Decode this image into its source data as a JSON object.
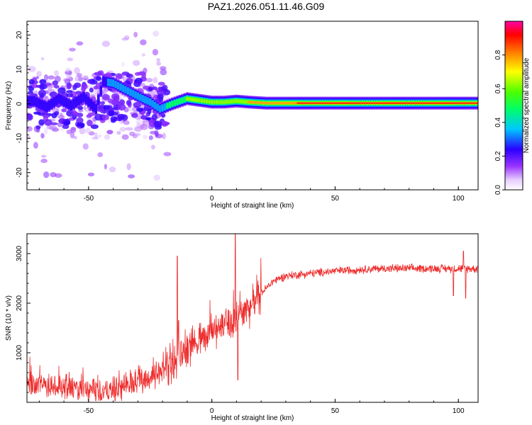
{
  "figure_title": "PAZ1.2026.051.11.46.G09",
  "colors": {
    "snr_line": "#ee2a2a",
    "axis": "#000000",
    "background": "#ffffff"
  },
  "chart_data": [
    {
      "type": "heatmap",
      "name": "spectrogram",
      "xlabel": "Height of straight line (km)",
      "ylabel": "Frequency (Hz)",
      "xlim": [
        -75,
        108
      ],
      "ylim": [
        -25,
        24
      ],
      "x_ticks": [
        -50,
        0,
        50,
        100
      ],
      "y_ticks": [
        -20,
        -10,
        0,
        10,
        20
      ],
      "colorbar": {
        "label": "Normalized spectral amplitude",
        "range": [
          0,
          1
        ],
        "ticks": [
          "0.0",
          "0.2",
          "0.4",
          "0.6",
          "0.8"
        ],
        "colormap": "rainbow (white-violet-blue-cyan-green-yellow-red-magenta)"
      },
      "ridge": [
        {
          "x": -72,
          "freq": 0.8,
          "amp": 0.22
        },
        {
          "x": -67,
          "freq": -1.0,
          "amp": 0.25
        },
        {
          "x": -62,
          "freq": 1.5,
          "amp": 0.24
        },
        {
          "x": -57,
          "freq": -0.5,
          "amp": 0.23
        },
        {
          "x": -52,
          "freq": 2.0,
          "amp": 0.22
        },
        {
          "x": -47,
          "freq": -1.5,
          "amp": 0.22
        },
        {
          "x": -44,
          "freq": 6.5,
          "amp": 0.3
        },
        {
          "x": -40,
          "freq": 6.0,
          "amp": 0.35
        },
        {
          "x": -36,
          "freq": 4.5,
          "amp": 0.4
        },
        {
          "x": -32,
          "freq": 3.0,
          "amp": 0.38
        },
        {
          "x": -28,
          "freq": 1.5,
          "amp": 0.36
        },
        {
          "x": -25,
          "freq": 0.5,
          "amp": 0.34
        },
        {
          "x": -21,
          "freq": -1.5,
          "amp": 0.4
        },
        {
          "x": -16,
          "freq": 0.0,
          "amp": 0.5
        },
        {
          "x": -10,
          "freq": 1.5,
          "amp": 0.6
        },
        {
          "x": -5,
          "freq": 1.0,
          "amp": 0.62
        },
        {
          "x": 0,
          "freq": 0.5,
          "amp": 0.68
        },
        {
          "x": 5,
          "freq": 0.5,
          "amp": 0.7
        },
        {
          "x": 10,
          "freq": 0.8,
          "amp": 0.72
        },
        {
          "x": 15,
          "freq": 0.5,
          "amp": 0.76
        },
        {
          "x": 22,
          "freq": 0.2,
          "amp": 0.85
        },
        {
          "x": 40,
          "freq": 0.2,
          "amp": 0.92
        },
        {
          "x": 60,
          "freq": 0.2,
          "amp": 0.95
        },
        {
          "x": 80,
          "freq": 0.2,
          "amp": 0.96
        },
        {
          "x": 100,
          "freq": 0.2,
          "amp": 0.96
        },
        {
          "x": 108,
          "freq": 0.2,
          "amp": 0.96
        }
      ]
    },
    {
      "type": "line",
      "name": "snr",
      "xlabel": "Height of straight line (km)",
      "ylabel": "SNR (10 * v/v)",
      "xlim": [
        -75,
        108
      ],
      "ylim": [
        0,
        3400
      ],
      "x_ticks": [
        -50,
        0,
        50,
        100
      ],
      "y_ticks": [
        1000,
        2000,
        3000
      ],
      "trend": {
        "x": [
          -75,
          -65,
          -55,
          -45,
          -38,
          -30,
          -22,
          -18,
          -12,
          -5,
          0,
          5,
          10,
          15,
          20,
          25,
          30,
          40,
          50,
          60,
          70,
          80,
          90,
          100,
          108
        ],
        "y": [
          400,
          320,
          250,
          200,
          260,
          450,
          550,
          650,
          1000,
          1250,
          1400,
          1550,
          1700,
          1900,
          2200,
          2450,
          2550,
          2600,
          2650,
          2680,
          2700,
          2700,
          2700,
          2700,
          2700
        ]
      },
      "spikes": [
        {
          "x": -14,
          "value": 2950
        },
        {
          "x": -13.5,
          "value": 1650
        },
        {
          "x": 9.5,
          "value": 3400
        },
        {
          "x": 10.5,
          "value": 450
        },
        {
          "x": 98,
          "value": 2150
        },
        {
          "x": 103,
          "value": 2100
        },
        {
          "x": 102,
          "value": 3050
        }
      ]
    }
  ]
}
